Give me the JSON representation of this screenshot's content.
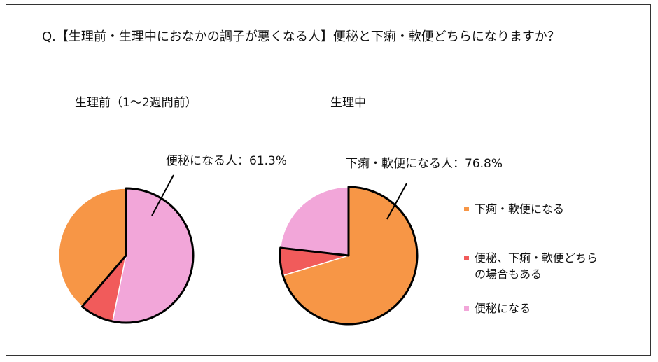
{
  "title": "Q.【生理前・生理中におなかの調子が悪くなる人】便秘と下痢・軟便どちらになりますか？",
  "legend": [
    {
      "label": "下痢・軟便になる",
      "color": "#F79646"
    },
    {
      "label": "便秘、下痢・軟便どちら\nの場合もある",
      "color": "#F15B5B"
    },
    {
      "label": "便秘になる",
      "color": "#F2A6D9"
    }
  ],
  "chart_data": [
    {
      "type": "pie",
      "title": "生理前（1～2週間前）",
      "annotation": "便秘になる人：61.3%",
      "slices": [
        {
          "label": "便秘になる",
          "value": 53.2,
          "color": "#F2A6D9"
        },
        {
          "label": "便秘、下痢・軟便どちらの場合もある",
          "value": 8.1,
          "color": "#F15B5B"
        },
        {
          "label": "下痢・軟便になる",
          "value": 38.7,
          "color": "#F79646"
        }
      ]
    },
    {
      "type": "pie",
      "title": "生理中",
      "annotation": "下痢・軟便になる人：76.8%",
      "slices": [
        {
          "label": "下痢・軟便になる",
          "value": 70.3,
          "color": "#F79646"
        },
        {
          "label": "便秘、下痢・軟便どちらの場合もある",
          "value": 6.5,
          "color": "#F15B5B"
        },
        {
          "label": "便秘になる",
          "value": 23.2,
          "color": "#F2A6D9"
        }
      ]
    }
  ]
}
